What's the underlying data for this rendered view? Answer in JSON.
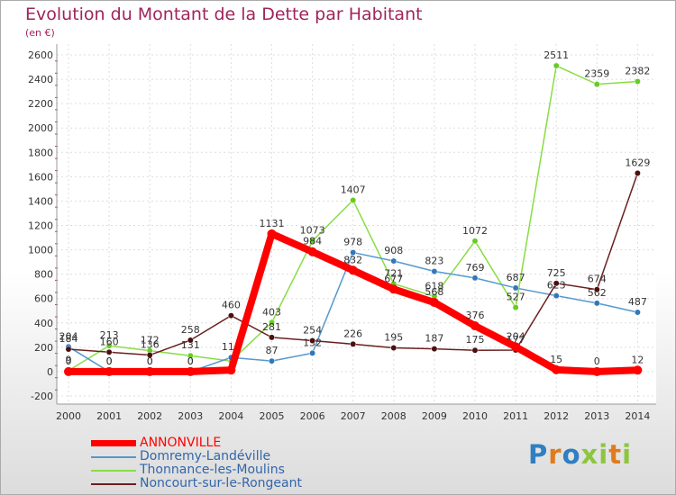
{
  "chart_data": {
    "type": "line",
    "title": "Evolution du Montant de la Dette par Habitant",
    "subtitle": "(en €)",
    "xlabel": "",
    "ylabel": "",
    "ylim": [
      -200,
      2600
    ],
    "ytick_step": 200,
    "x": [
      "2000",
      "2001",
      "2002",
      "2003",
      "2004",
      "2005",
      "2006",
      "2007",
      "2008",
      "2009",
      "2010",
      "2011",
      "2012",
      "2013",
      "2014"
    ],
    "grid": true,
    "legend_position": "bottom-left",
    "series": [
      {
        "name": "Thonnance-les-Moulins",
        "color": "#88dd44",
        "marker_color": "#66cc22",
        "values": [
          9,
          213,
          172,
          131,
          87,
          403,
          1073,
          1407,
          721,
          618,
          1072,
          527,
          2511,
          2359,
          2382
        ],
        "labels": [
          "9",
          "213",
          "172",
          "131",
          "",
          "403",
          "1073",
          "1407",
          "721",
          "618",
          "1072",
          "527",
          "2511",
          "2359",
          "2382"
        ]
      },
      {
        "name": "Domremy-Landéville",
        "color": "#5599cc",
        "marker_color": "#3377bb",
        "values": [
          204,
          0,
          0,
          0,
          116,
          87,
          152,
          978,
          908,
          823,
          769,
          687,
          623,
          562,
          487
        ],
        "labels": [
          "204",
          "0",
          "0",
          "0",
          "116",
          "87",
          "152",
          "978",
          "908",
          "823",
          "769",
          "687",
          "623",
          "562",
          "487"
        ]
      },
      {
        "name": "Noncourt-sur-le-Rongeant",
        "color": "#6b1f1f",
        "marker_color": "#4a0f0f",
        "values": [
          184,
          160,
          136,
          258,
          460,
          281,
          254,
          226,
          195,
          187,
          175,
          177,
          725,
          674,
          1629
        ],
        "labels": [
          "184",
          "160",
          "136",
          "258",
          "460",
          "281",
          "254",
          "226",
          "195",
          "187",
          "175",
          "177",
          "725",
          "674",
          "1629"
        ]
      },
      {
        "name": "ANNONVILLE",
        "color": "#ff0000",
        "marker_color": "#ff0000",
        "values": [
          0,
          0,
          0,
          0,
          13,
          1131,
          984,
          832,
          677,
          568,
          376,
          204,
          15,
          0,
          12
        ],
        "labels": [
          "0",
          "0",
          "0",
          "0",
          "",
          "1131",
          "984",
          "832",
          "677",
          "568",
          "376",
          "204",
          "15",
          "0",
          "12"
        ]
      }
    ]
  },
  "legend": {
    "items": [
      {
        "label": "ANNONVILLE",
        "color": "#ff0000",
        "color_name": "red"
      },
      {
        "label": "Domremy-Landéville",
        "color": "#5599cc",
        "color_name": "blue"
      },
      {
        "label": "Thonnance-les-Moulins",
        "color": "#88dd44",
        "color_name": "green"
      },
      {
        "label": "Noncourt-sur-le-Rongeant",
        "color": "#6b1f1f",
        "color_name": "dark red"
      }
    ]
  },
  "branding": {
    "logo_text": "Proxiti"
  }
}
